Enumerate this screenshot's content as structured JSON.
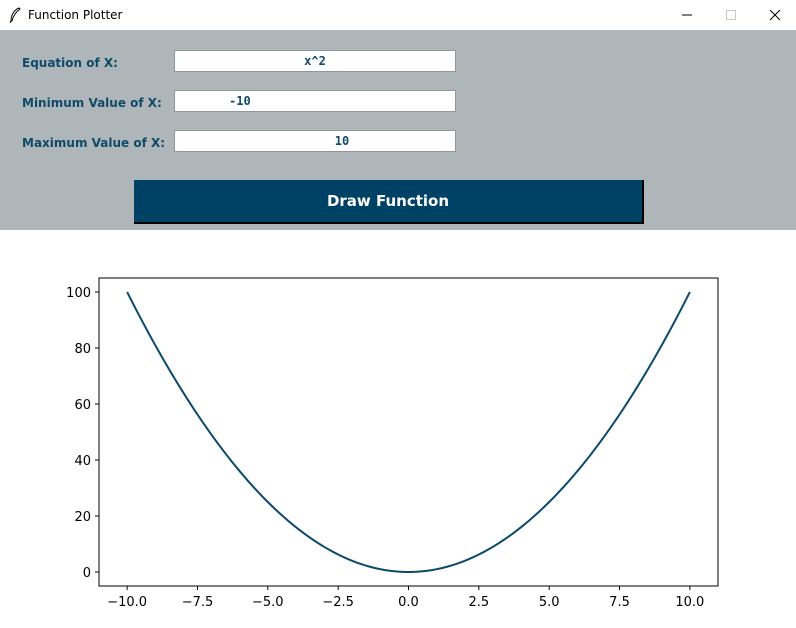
{
  "window": {
    "title": "Function Plotter",
    "app_icon": "feather-icon",
    "controls": [
      "minimize-icon",
      "maximize-icon",
      "close-icon"
    ]
  },
  "form": {
    "equation_label": "Equation of X:",
    "equation_value": "x^2",
    "min_label": "Minimum Value of X:",
    "min_value": "-10",
    "max_label": "Maximum Value of X:",
    "max_value": "10",
    "draw_button_label": "Draw Function"
  },
  "colors": {
    "panel_background": "#afb6ba",
    "accent": "#004265",
    "label_text": "#0f4a68",
    "plot_line": "#0b4a6b"
  },
  "chart_data": {
    "type": "line",
    "function": "x^2",
    "x_range": [
      -10,
      10
    ],
    "series": [
      {
        "x": [
          -10,
          -7.5,
          -5,
          -2.5,
          0,
          2.5,
          5,
          7.5,
          10
        ],
        "y": [
          100,
          56.25,
          25,
          6.25,
          0,
          6.25,
          25,
          56.25,
          100
        ]
      }
    ],
    "xlim": [
      -11,
      11
    ],
    "ylim": [
      -5,
      105
    ],
    "x_ticks": [
      -10.0,
      -7.5,
      -5.0,
      -2.5,
      0.0,
      2.5,
      5.0,
      7.5,
      10.0
    ],
    "x_tick_labels": [
      "−10.0",
      "−7.5",
      "−5.0",
      "−2.5",
      "0.0",
      "2.5",
      "5.0",
      "7.5",
      "10.0"
    ],
    "y_ticks": [
      0,
      20,
      40,
      60,
      80,
      100
    ],
    "y_tick_labels": [
      "0",
      "20",
      "40",
      "60",
      "80",
      "100"
    ],
    "title": "",
    "xlabel": "",
    "ylabel": "",
    "grid": false,
    "legend": "none"
  }
}
